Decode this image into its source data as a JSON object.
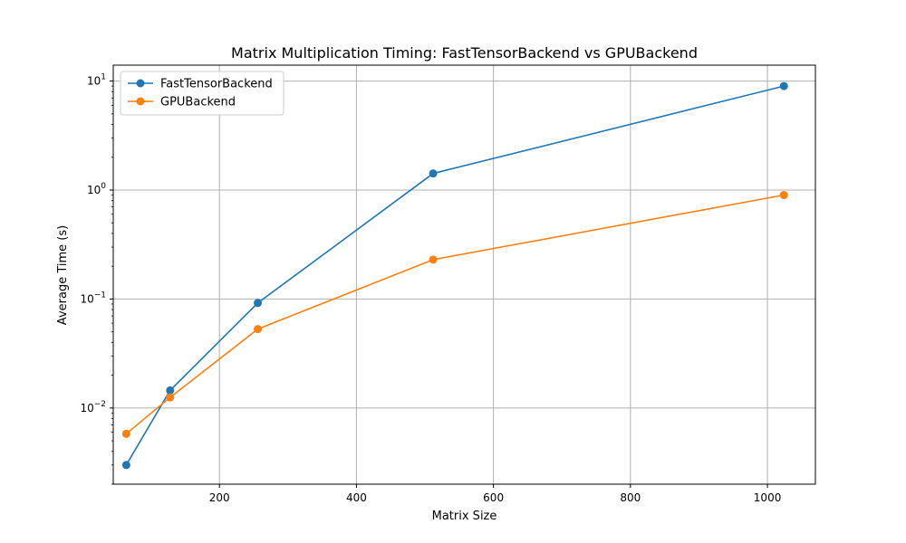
{
  "chart_data": {
    "type": "line",
    "title": "Matrix Multiplication Timing: FastTensorBackend vs GPUBackend",
    "xlabel": "Matrix Size",
    "ylabel": "Average Time (s)",
    "xlim": [
      45,
      1070
    ],
    "ylim": [
      0.002,
      14
    ],
    "yscale": "log",
    "grid": true,
    "legend_position": "top-left",
    "x_ticks": [
      200,
      400,
      600,
      800,
      1000
    ],
    "y_ticks": [
      {
        "value": 0.01,
        "base": "10",
        "exp": "−2"
      },
      {
        "value": 0.1,
        "base": "10",
        "exp": "−1"
      },
      {
        "value": 1,
        "base": "10",
        "exp": "0"
      },
      {
        "value": 10,
        "base": "10",
        "exp": "1"
      }
    ],
    "series": [
      {
        "name": "FastTensorBackend",
        "color": "#1f77b4",
        "x": [
          64,
          128,
          256,
          512,
          1024
        ],
        "y": [
          0.003,
          0.0145,
          0.092,
          1.42,
          9.0
        ]
      },
      {
        "name": "GPUBackend",
        "color": "#ff7f0e",
        "x": [
          64,
          128,
          256,
          512,
          1024
        ],
        "y": [
          0.0058,
          0.0125,
          0.053,
          0.23,
          0.9
        ]
      }
    ]
  }
}
